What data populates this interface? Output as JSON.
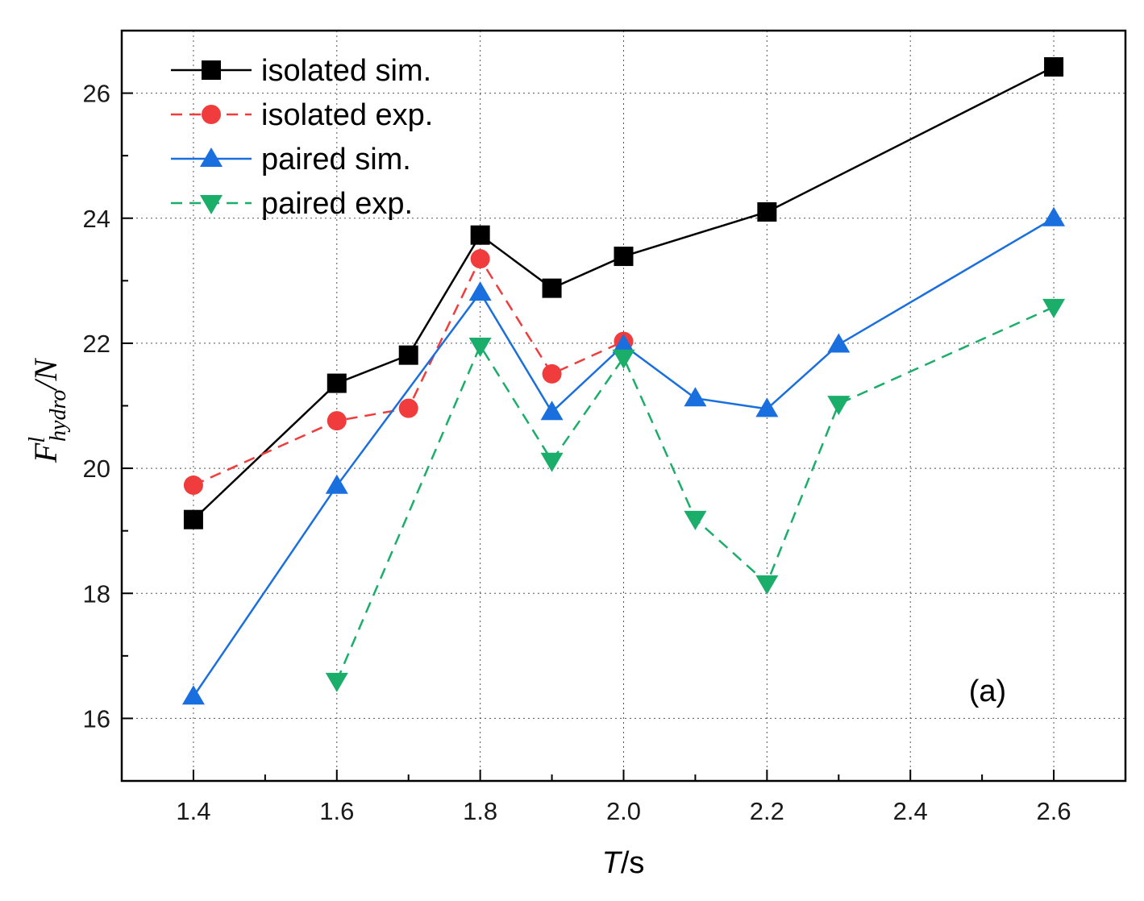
{
  "chart_data": {
    "type": "line",
    "xlabel_italic": "T",
    "xlabel_rest": "/s",
    "ylabel_main": "F",
    "ylabel_sup": "l",
    "ylabel_sub": "hydro",
    "ylabel_rest": "/N",
    "panel_label": "(a)",
    "xlim": [
      1.3,
      2.7
    ],
    "ylim": [
      15.0,
      27.0
    ],
    "x_ticks": [
      1.4,
      1.6,
      1.8,
      2.0,
      2.2,
      2.4,
      2.6
    ],
    "x_tick_labels": [
      "1.4",
      "1.6",
      "1.8",
      "2.0",
      "2.2",
      "2.4",
      "2.6"
    ],
    "y_ticks": [
      16,
      18,
      20,
      22,
      24,
      26
    ],
    "y_tick_labels": [
      "16",
      "18",
      "20",
      "22",
      "24",
      "26"
    ],
    "grid": true,
    "legend_position": "top-left",
    "series": [
      {
        "name": "isolated sim.",
        "color": "#000000",
        "dash": "solid",
        "marker": "square",
        "x": [
          1.4,
          1.6,
          1.7,
          1.8,
          1.9,
          2.0,
          2.2,
          2.6
        ],
        "y": [
          19.18,
          21.36,
          21.81,
          23.73,
          22.88,
          23.39,
          24.1,
          26.42
        ]
      },
      {
        "name": "isolated exp.",
        "color": "#f03c3c",
        "dash": "dashed",
        "marker": "circle",
        "x": [
          1.4,
          1.6,
          1.7,
          1.8,
          1.9,
          2.0
        ],
        "y": [
          19.73,
          20.76,
          20.96,
          23.35,
          21.51,
          22.03
        ]
      },
      {
        "name": "paired sim.",
        "color": "#1a6fdf",
        "dash": "solid",
        "marker": "triangle-up",
        "x": [
          1.4,
          1.6,
          1.8,
          1.9,
          2.0,
          2.1,
          2.2,
          2.3,
          2.6
        ],
        "y": [
          16.35,
          19.72,
          22.81,
          20.9,
          21.97,
          21.12,
          20.95,
          21.98,
          24.0
        ]
      },
      {
        "name": "paired exp.",
        "color": "#1bae6a",
        "dash": "dashed",
        "marker": "triangle-down",
        "x": [
          1.6,
          1.8,
          1.9,
          2.0,
          2.1,
          2.2,
          2.3,
          2.6
        ],
        "y": [
          16.6,
          21.96,
          20.12,
          21.77,
          19.19,
          18.16,
          21.03,
          22.58
        ]
      }
    ]
  }
}
